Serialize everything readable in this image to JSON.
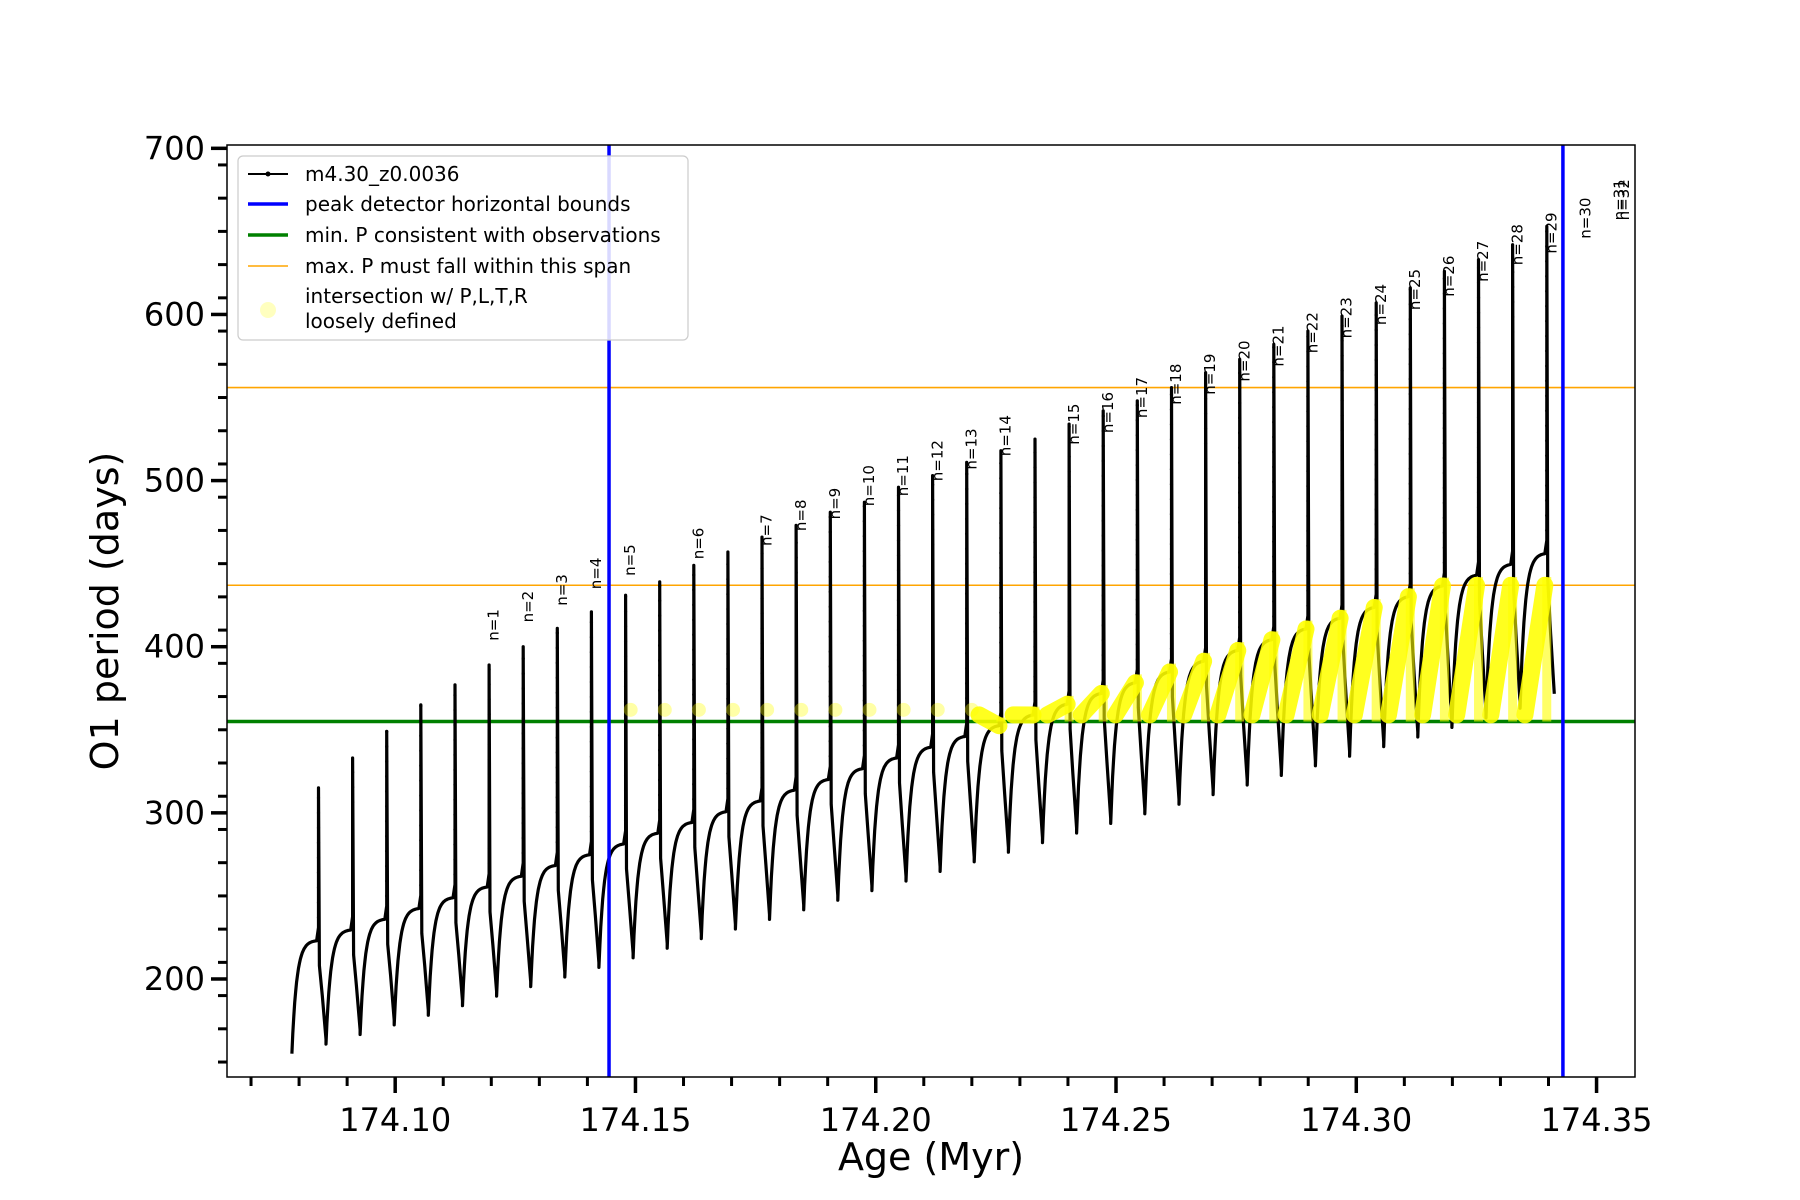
{
  "chart_data": {
    "type": "line",
    "xlabel": "Age (Myr)",
    "ylabel": "O1 period (days)",
    "xlim": [
      174.065,
      174.358
    ],
    "ylim": [
      141,
      702
    ],
    "x_ticks": [
      174.1,
      174.15,
      174.2,
      174.25,
      174.3,
      174.35
    ],
    "x_tick_labels": [
      "174.10",
      "174.15",
      "174.20",
      "174.25",
      "174.30",
      "174.35"
    ],
    "y_ticks": [
      200,
      300,
      400,
      500,
      600,
      700
    ],
    "y_tick_labels": [
      "200",
      "300",
      "400",
      "500",
      "600",
      "700"
    ],
    "legend_position": "upper-left",
    "legend": [
      {
        "label": "m4.30_z0.0036",
        "color": "#000000",
        "style": "line-marker"
      },
      {
        "label": "peak detector horizontal bounds",
        "color": "#0000ff",
        "style": "line"
      },
      {
        "label": "min. P consistent with observations",
        "color": "#008000",
        "style": "line"
      },
      {
        "label": "max. P must fall within this span",
        "color": "#ffa500",
        "style": "line"
      },
      {
        "label": "intersection w/ P,L,T,R",
        "label2": "loosely defined",
        "color": "#ffff00",
        "style": "marker"
      }
    ],
    "series_name": "m4.30_z0.0036",
    "cycles": {
      "start_x": 174.0785,
      "period": 0.0071,
      "spike_fraction": 0.78,
      "spike_peaks": [
        315,
        333,
        349,
        365,
        377,
        389,
        400,
        411,
        421,
        431,
        439,
        449,
        457,
        466,
        473,
        481,
        487,
        496,
        503,
        511,
        518,
        525,
        534,
        542,
        548,
        556,
        565,
        573,
        582,
        590,
        599,
        607,
        616,
        626,
        633,
        642,
        653
      ]
    },
    "pulse_labels": [
      {
        "x": 174.1203,
        "label": "n=1"
      },
      {
        "x": 174.1274,
        "label": "n=2"
      },
      {
        "x": 174.1345,
        "label": "n=3"
      },
      {
        "x": 174.1416,
        "label": "n=4"
      },
      {
        "x": 174.1487,
        "label": "n=5"
      },
      {
        "x": 174.1629,
        "label": "n=6"
      },
      {
        "x": 174.1771,
        "label": "n=7"
      },
      {
        "x": 174.1842,
        "label": "n=8"
      },
      {
        "x": 174.1913,
        "label": "n=9"
      },
      {
        "x": 174.1984,
        "label": "n=10"
      },
      {
        "x": 174.2055,
        "label": "n=11"
      },
      {
        "x": 174.2126,
        "label": "n=12"
      },
      {
        "x": 174.2197,
        "label": "n=13"
      },
      {
        "x": 174.2268,
        "label": "n=14"
      },
      {
        "x": 174.241,
        "label": "n=15"
      },
      {
        "x": 174.2481,
        "label": "n=16"
      },
      {
        "x": 174.2552,
        "label": "n=17"
      },
      {
        "x": 174.2623,
        "label": "n=18"
      },
      {
        "x": 174.2694,
        "label": "n=19"
      },
      {
        "x": 174.2765,
        "label": "n=20"
      },
      {
        "x": 174.2836,
        "label": "n=21"
      },
      {
        "x": 174.2907,
        "label": "n=22"
      },
      {
        "x": 174.2978,
        "label": "n=23"
      },
      {
        "x": 174.3049,
        "label": "n=24"
      },
      {
        "x": 174.312,
        "label": "n=25"
      },
      {
        "x": 174.3191,
        "label": "n=26"
      },
      {
        "x": 174.3262,
        "label": "n=27"
      },
      {
        "x": 174.3333,
        "label": "n=28"
      },
      {
        "x": 174.3404,
        "label": "n=29"
      },
      {
        "x": 174.3475,
        "label": "n=30"
      },
      {
        "x": 174.3546,
        "label": "n=31"
      },
      {
        "x": 174.3617,
        "label": "n=32"
      }
    ],
    "vertical_lines": [
      {
        "x": 174.1445,
        "color": "#0000ff"
      },
      {
        "x": 174.343,
        "color": "#0000ff"
      }
    ],
    "horizontal_lines": [
      {
        "y": 355,
        "color": "#008000"
      },
      {
        "y": 437,
        "color": "#ffa500"
      },
      {
        "y": 556,
        "color": "#ffa500"
      }
    ],
    "intersection_band": {
      "x_start": 174.2195,
      "x_end": 174.343,
      "y_min": 355,
      "y_max": 437
    }
  }
}
